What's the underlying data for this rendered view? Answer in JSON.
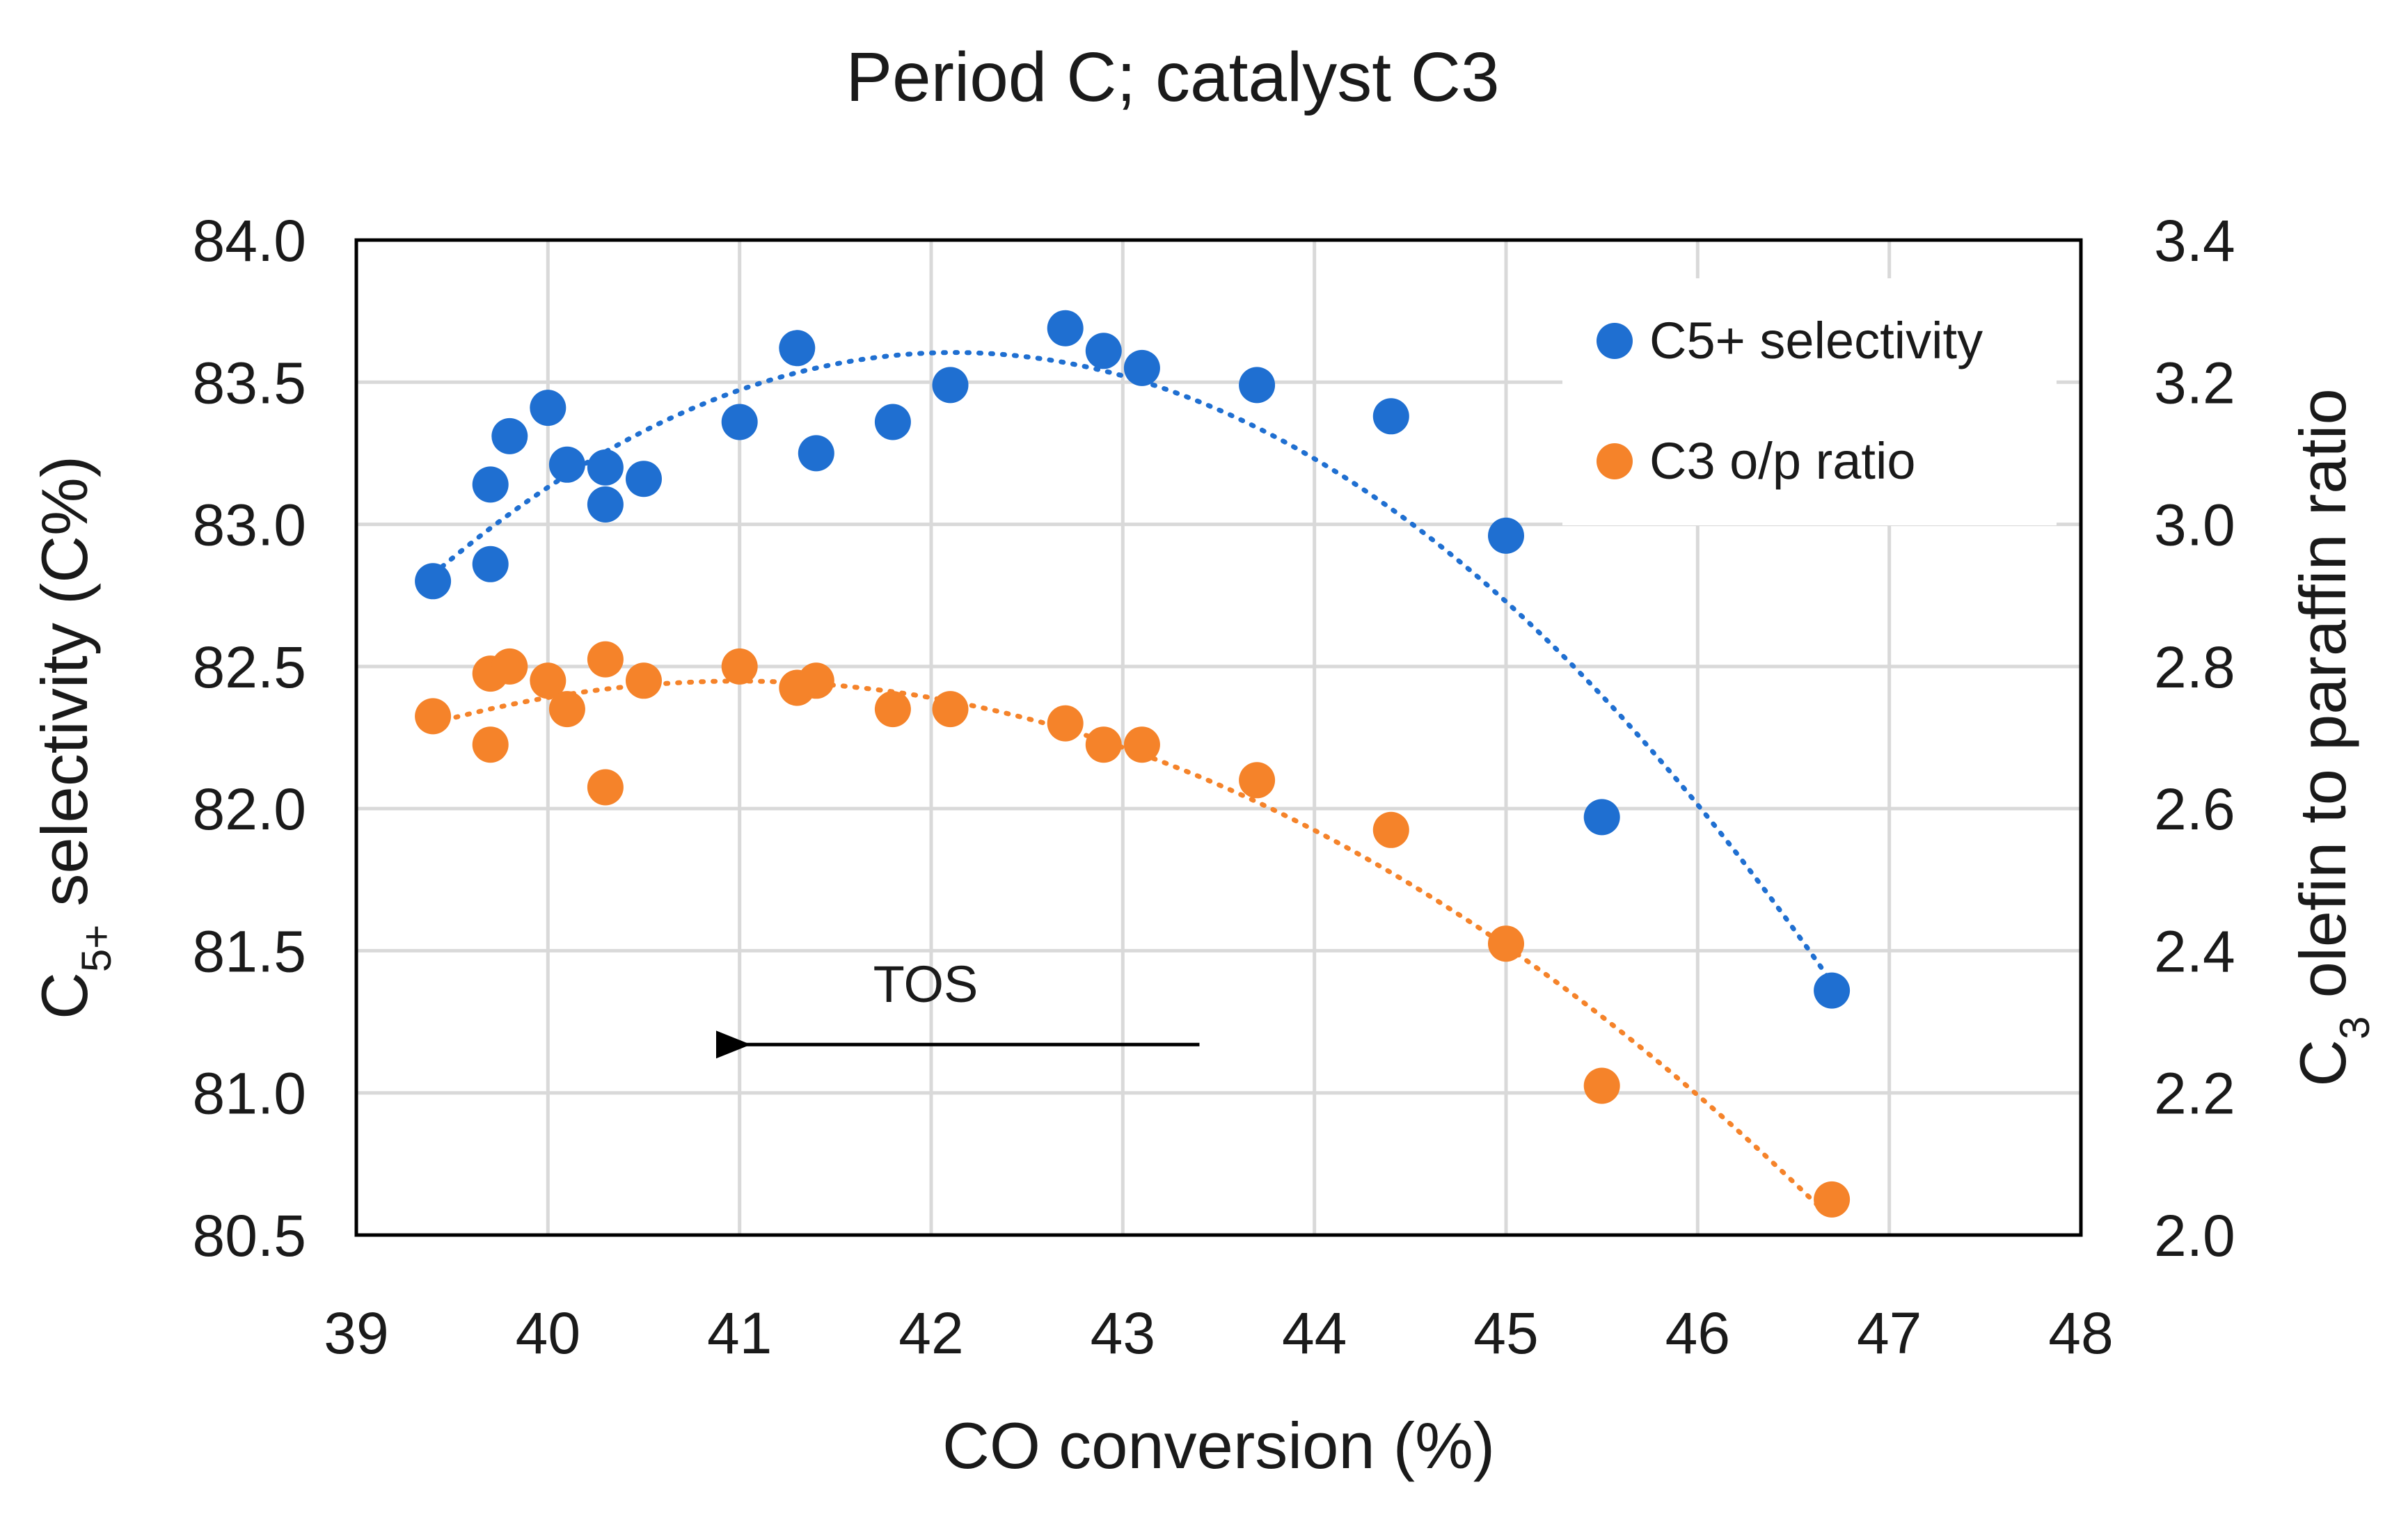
{
  "chart_data": {
    "type": "scatter",
    "title": "Period C; catalyst C3",
    "xlabel": "CO conversion (%)",
    "ylabel": {
      "base": "C",
      "sub": "5+",
      "rest": " selectivity (C%)"
    },
    "y2label": {
      "base": "C",
      "sub": "3",
      "rest": " olefin to paraffin ratio"
    },
    "xlim": [
      39,
      48
    ],
    "ylim": [
      80.5,
      84.0
    ],
    "y2lim": [
      2.0,
      3.4
    ],
    "x_ticks": [
      "39",
      "40",
      "41",
      "42",
      "43",
      "44",
      "45",
      "46",
      "47",
      "48"
    ],
    "y_ticks": [
      "80.5",
      "81.0",
      "81.5",
      "82.0",
      "82.5",
      "83.0",
      "83.5",
      "84.0"
    ],
    "y2_ticks": [
      "2.0",
      "2.2",
      "2.4",
      "2.6",
      "2.8",
      "3.0",
      "3.2",
      "3.4"
    ],
    "grid": true,
    "legend_position": "top-right",
    "series": [
      {
        "name": "C5+ selectivity",
        "axis": "left",
        "color": "#1f6fd1",
        "trendline": "polynomial",
        "points": [
          [
            39.4,
            82.8
          ],
          [
            39.7,
            83.14
          ],
          [
            39.7,
            82.86
          ],
          [
            39.8,
            83.31
          ],
          [
            40.0,
            83.41
          ],
          [
            40.1,
            83.21
          ],
          [
            40.3,
            83.2
          ],
          [
            40.3,
            83.07
          ],
          [
            40.5,
            83.16
          ],
          [
            41.0,
            83.36
          ],
          [
            41.3,
            83.62
          ],
          [
            41.4,
            83.25
          ],
          [
            41.8,
            83.36
          ],
          [
            42.1,
            83.49
          ],
          [
            42.7,
            83.69
          ],
          [
            42.9,
            83.61
          ],
          [
            43.1,
            83.55
          ],
          [
            43.7,
            83.49
          ],
          [
            44.4,
            83.38
          ],
          [
            45.0,
            82.96
          ],
          [
            45.5,
            81.97
          ],
          [
            46.7,
            81.36
          ]
        ]
      },
      {
        "name": "C3 o/p ratio",
        "axis": "right",
        "color": "#f5832a",
        "trendline": "polynomial",
        "points": [
          [
            39.4,
            2.73
          ],
          [
            39.7,
            2.79
          ],
          [
            39.7,
            2.69
          ],
          [
            39.8,
            2.8
          ],
          [
            40.0,
            2.78
          ],
          [
            40.1,
            2.74
          ],
          [
            40.3,
            2.81
          ],
          [
            40.3,
            2.63
          ],
          [
            40.5,
            2.78
          ],
          [
            41.0,
            2.8
          ],
          [
            41.3,
            2.77
          ],
          [
            41.4,
            2.78
          ],
          [
            41.8,
            2.74
          ],
          [
            42.1,
            2.74
          ],
          [
            42.7,
            2.72
          ],
          [
            42.9,
            2.69
          ],
          [
            43.1,
            2.69
          ],
          [
            43.7,
            2.64
          ],
          [
            44.4,
            2.57
          ],
          [
            45.0,
            2.41
          ],
          [
            45.5,
            2.21
          ],
          [
            46.7,
            2.05
          ]
        ]
      }
    ],
    "annotation": {
      "text": "TOS",
      "arrow": "left",
      "from_x": 43.4,
      "to_x": 40.95,
      "y": 81.17
    }
  }
}
